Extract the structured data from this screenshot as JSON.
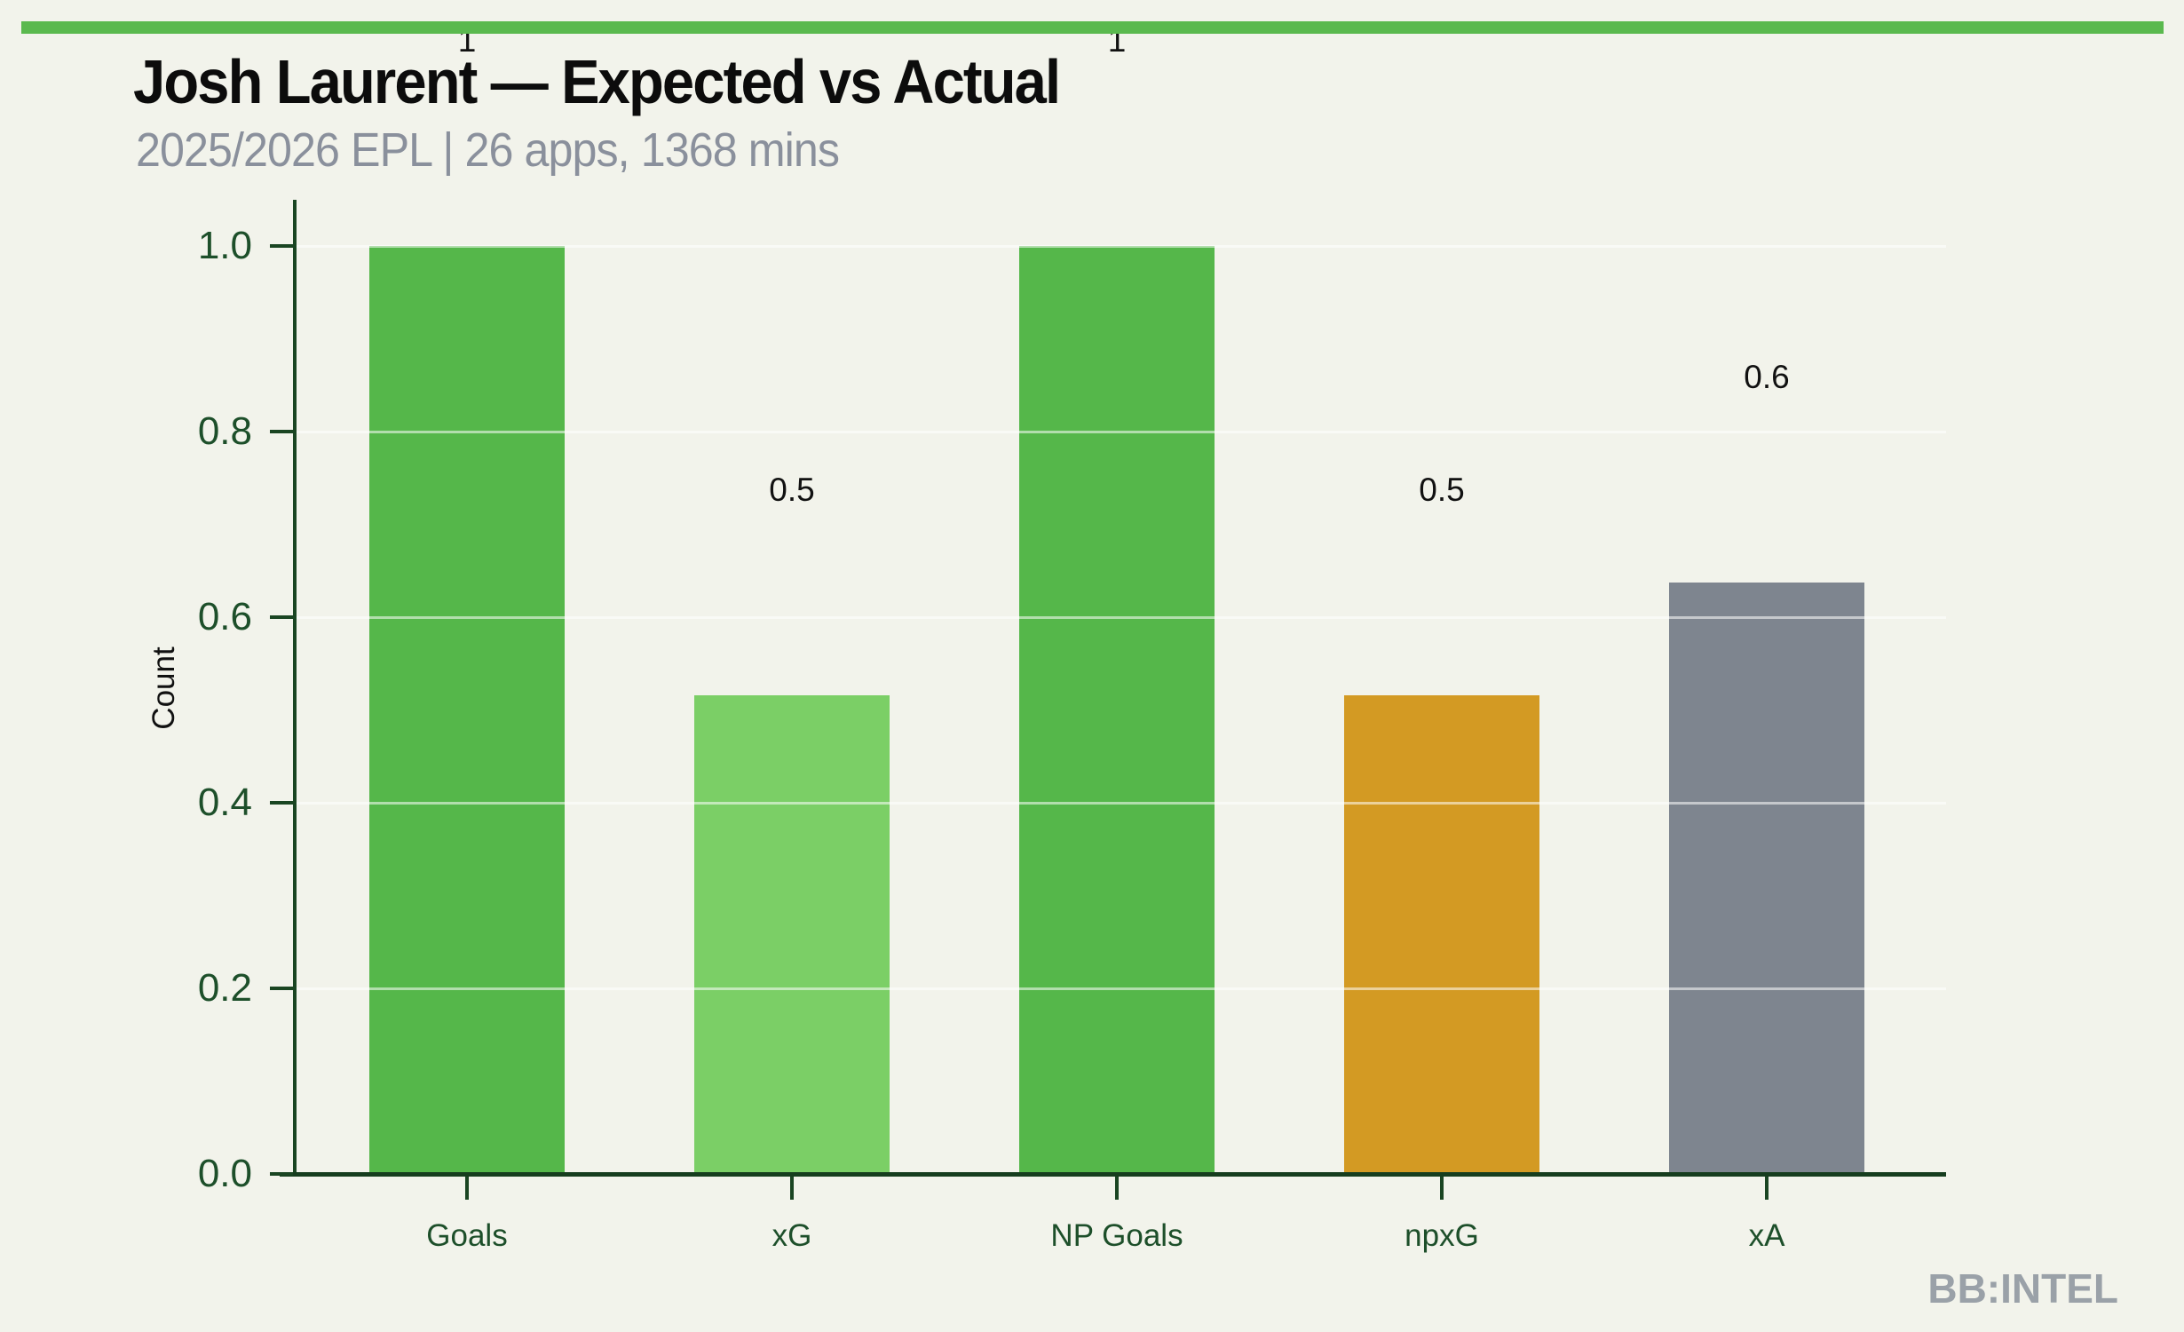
{
  "header": {
    "accent_color": "#5ab94e",
    "title": "Josh Laurent — Expected vs Actual",
    "subtitle": "2025/2026 EPL | 26 apps, 1368 mins"
  },
  "watermark": "BB:INTEL",
  "chart_data": {
    "type": "bar",
    "title": "Josh Laurent — Expected vs Actual",
    "subtitle": "2025/2026 EPL | 26 apps, 1368 mins",
    "categories": [
      "Goals",
      "xG",
      "NP Goals",
      "npxG",
      "xA"
    ],
    "values": [
      1.0,
      0.516,
      1.0,
      0.516,
      0.637
    ],
    "value_labels": [
      "1",
      "0.5",
      "1",
      "0.5",
      "0.6"
    ],
    "bar_colors": [
      "#55b74a",
      "#7bcf66",
      "#55b74a",
      "#d39a23",
      "#7e858f"
    ],
    "xlabel": "",
    "ylabel": "Count",
    "ylim": [
      0.0,
      1.0
    ],
    "yticks": [
      0.0,
      0.2,
      0.4,
      0.6,
      0.8,
      1.0
    ],
    "ytick_labels": [
      "0.0",
      "0.2",
      "0.4",
      "0.6",
      "0.8",
      "1.0"
    ],
    "grid": "horizontal",
    "legend": "none",
    "axis_color": "#1a4522",
    "tick_label_color": "#1d4f2a",
    "background_color": "#f2f3eb"
  }
}
